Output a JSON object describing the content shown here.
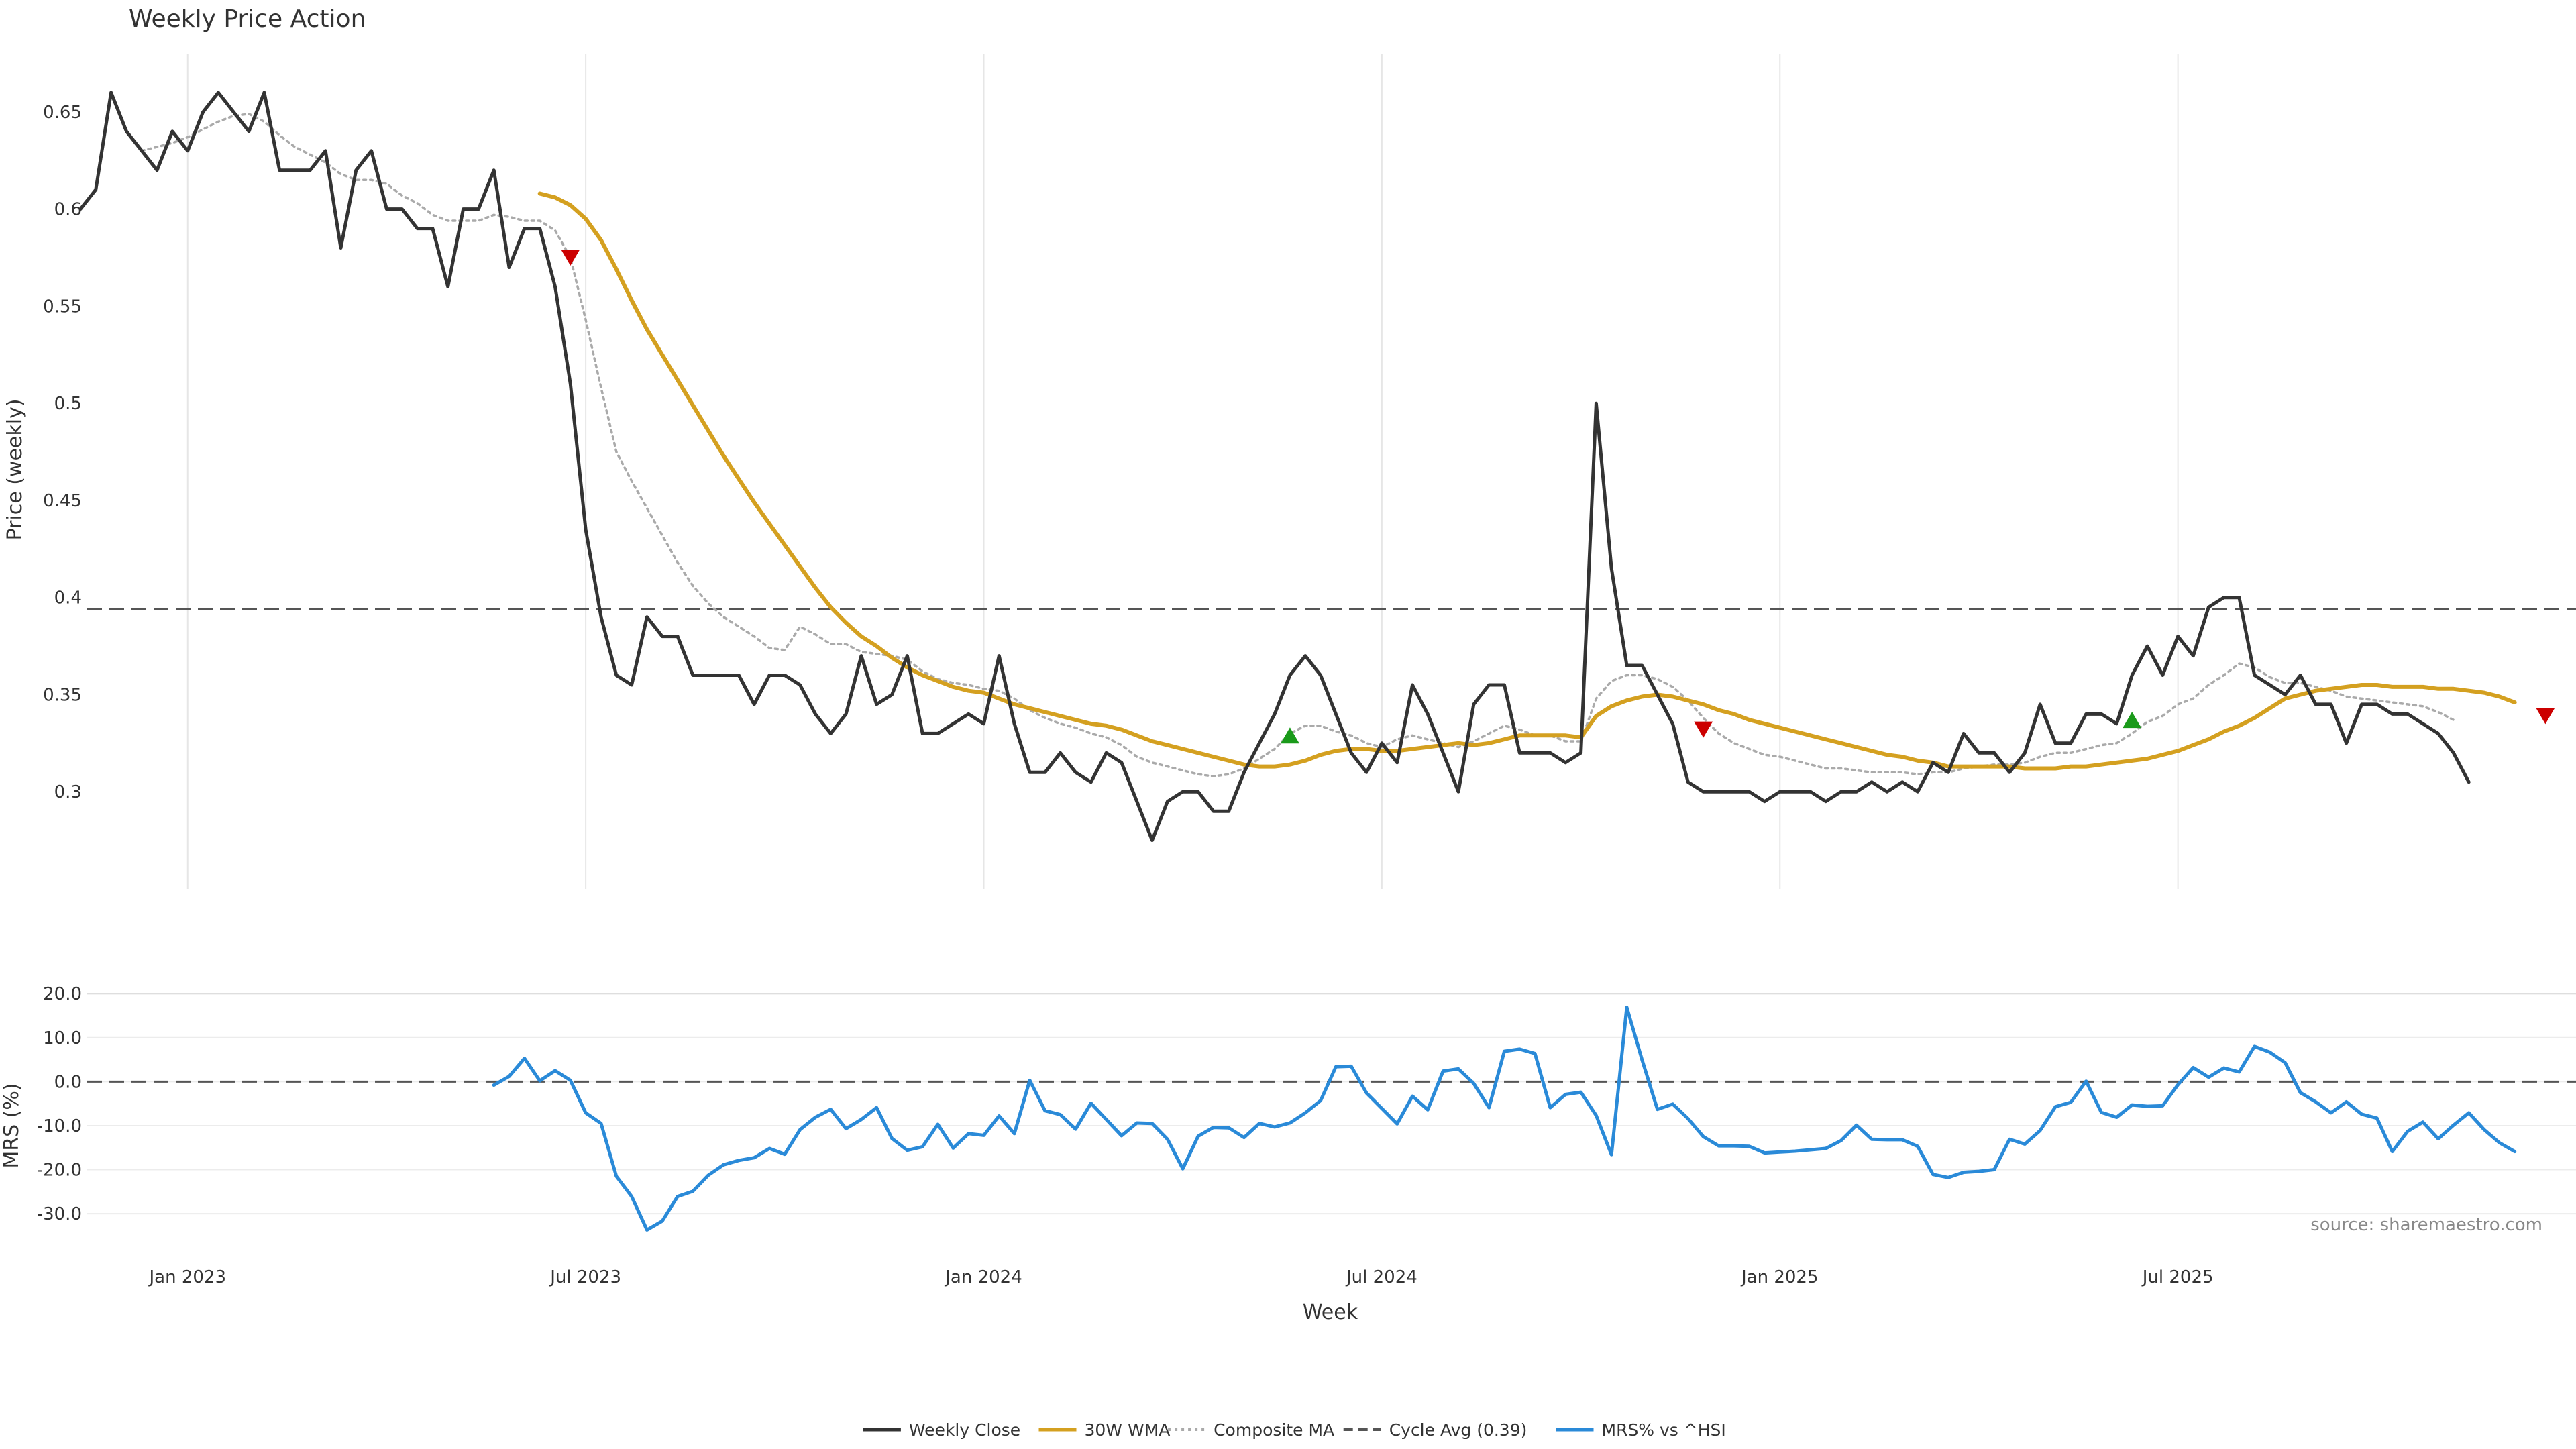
{
  "chart_data": {
    "type": "line",
    "title": "Weekly Price Action",
    "source_note": "source: sharemaestro.com",
    "xlabel": "Week",
    "x_ticks": [
      "Jan 2023",
      "Jul 2023",
      "Jan 2024",
      "Jul 2024",
      "Jan 2025",
      "Jul 2025"
    ],
    "x_range": [
      "2022-11-14",
      "2025-12-29"
    ],
    "price_panel": {
      "ylabel": "Price (weekly)",
      "ylim": [
        0.25,
        0.68
      ],
      "yticks": [
        {
          "value": 0.3,
          "label": "0.3"
        },
        {
          "value": 0.35,
          "label": "0.35"
        },
        {
          "value": 0.4,
          "label": "0.4"
        },
        {
          "value": 0.45,
          "label": "0.45"
        },
        {
          "value": 0.5,
          "label": "0.5"
        },
        {
          "value": 0.55,
          "label": "0.55"
        },
        {
          "value": 0.6,
          "label": "0.6"
        },
        {
          "value": 0.65,
          "label": "0.65"
        }
      ],
      "cycle_avg": 0.394,
      "series": [
        {
          "name": "Weekly Close",
          "color": "#333333",
          "start_date": "2022-11-14",
          "values": [
            0.6,
            0.61,
            0.66,
            0.64,
            0.63,
            0.62,
            0.64,
            0.63,
            0.65,
            0.66,
            0.65,
            0.64,
            0.66,
            0.62,
            0.62,
            0.62,
            0.63,
            0.58,
            0.62,
            0.63,
            0.6,
            0.6,
            0.59,
            0.59,
            0.56,
            0.6,
            0.6,
            0.62,
            0.57,
            0.59,
            0.59,
            0.56,
            0.51,
            0.435,
            0.39,
            0.36,
            0.355,
            0.39,
            0.38,
            0.38,
            0.36,
            0.36,
            0.36,
            0.36,
            0.345,
            0.36,
            0.36,
            0.355,
            0.34,
            0.33,
            0.34,
            0.37,
            0.345,
            0.35,
            0.37,
            0.33,
            0.33,
            0.335,
            0.34,
            0.335,
            0.37,
            0.335,
            0.31,
            0.31,
            0.32,
            0.31,
            0.305,
            0.32,
            0.315,
            0.295,
            0.275,
            0.295,
            0.3,
            0.3,
            0.29,
            0.29,
            0.31,
            0.325,
            0.34,
            0.36,
            0.37,
            0.36,
            0.34,
            0.32,
            0.31,
            0.325,
            0.315,
            0.355,
            0.34,
            0.32,
            0.3,
            0.345,
            0.355,
            0.355,
            0.32,
            0.32,
            0.32,
            0.315,
            0.32,
            0.5,
            0.415,
            0.365,
            0.365,
            0.35,
            0.335,
            0.305,
            0.3,
            0.3,
            0.3,
            0.3,
            0.295,
            0.3,
            0.3,
            0.3,
            0.295,
            0.3,
            0.3,
            0.305,
            0.3,
            0.305,
            0.3,
            0.315,
            0.31,
            0.33,
            0.32,
            0.32,
            0.31,
            0.32,
            0.345,
            0.325,
            0.325,
            0.34,
            0.34,
            0.335,
            0.36,
            0.375,
            0.36,
            0.38,
            0.37,
            0.395,
            0.4,
            0.4,
            0.36,
            0.355,
            0.35,
            0.36,
            0.345,
            0.345,
            0.325,
            0.345,
            0.345,
            0.34,
            0.34,
            0.335,
            0.33,
            0.32,
            0.305
          ]
        },
        {
          "name": "30W WMA",
          "color": "#d4a020",
          "start_date": "2023-06-12",
          "values": [
            0.608,
            0.606,
            0.602,
            0.595,
            0.584,
            0.569,
            0.553,
            0.538,
            0.525,
            0.512,
            0.499,
            0.486,
            0.473,
            0.461,
            0.449,
            0.438,
            0.427,
            0.416,
            0.405,
            0.395,
            0.387,
            0.38,
            0.375,
            0.369,
            0.364,
            0.36,
            0.357,
            0.354,
            0.352,
            0.351,
            0.348,
            0.345,
            0.343,
            0.341,
            0.339,
            0.337,
            0.335,
            0.334,
            0.332,
            0.329,
            0.326,
            0.324,
            0.322,
            0.32,
            0.318,
            0.316,
            0.314,
            0.313,
            0.313,
            0.314,
            0.316,
            0.319,
            0.321,
            0.322,
            0.322,
            0.321,
            0.321,
            0.322,
            0.323,
            0.324,
            0.325,
            0.324,
            0.325,
            0.327,
            0.329,
            0.329,
            0.329,
            0.329,
            0.328,
            0.339,
            0.344,
            0.347,
            0.349,
            0.35,
            0.349,
            0.347,
            0.345,
            0.342,
            0.34,
            0.337,
            0.335,
            0.333,
            0.331,
            0.329,
            0.327,
            0.325,
            0.323,
            0.321,
            0.319,
            0.318,
            0.316,
            0.315,
            0.313,
            0.313,
            0.313,
            0.313,
            0.313,
            0.312,
            0.312,
            0.312,
            0.313,
            0.313,
            0.314,
            0.315,
            0.316,
            0.317,
            0.319,
            0.321,
            0.324,
            0.327,
            0.331,
            0.334,
            0.338,
            0.343,
            0.348,
            0.35,
            0.352,
            0.353,
            0.354,
            0.355,
            0.355,
            0.354,
            0.354,
            0.354,
            0.353,
            0.353,
            0.352,
            0.351,
            0.349,
            0.346
          ]
        },
        {
          "name": "Composite MA",
          "color": "#aaaaaa",
          "start_date": "2022-11-14",
          "values": [
            null,
            null,
            null,
            null,
            0.63,
            0.632,
            0.634,
            0.637,
            0.641,
            0.645,
            0.648,
            0.649,
            0.645,
            0.638,
            0.632,
            0.628,
            0.624,
            0.618,
            0.615,
            0.615,
            0.613,
            0.607,
            0.603,
            0.597,
            0.594,
            0.594,
            0.594,
            0.597,
            0.596,
            0.594,
            0.594,
            0.589,
            0.575,
            0.543,
            0.508,
            0.475,
            0.46,
            0.446,
            0.432,
            0.418,
            0.406,
            0.397,
            0.39,
            0.385,
            0.38,
            0.374,
            0.373,
            0.385,
            0.381,
            0.376,
            0.376,
            0.372,
            0.371,
            0.37,
            0.368,
            0.362,
            0.358,
            0.356,
            0.355,
            0.353,
            0.352,
            0.348,
            0.342,
            0.338,
            0.335,
            0.333,
            0.33,
            0.328,
            0.324,
            0.318,
            0.315,
            0.313,
            0.311,
            0.309,
            0.308,
            0.309,
            0.312,
            0.317,
            0.322,
            0.33,
            0.334,
            0.334,
            0.331,
            0.329,
            0.325,
            0.323,
            0.327,
            0.329,
            0.327,
            0.325,
            0.323,
            0.326,
            0.33,
            0.334,
            0.332,
            0.329,
            0.329,
            0.326,
            0.326,
            0.348,
            0.357,
            0.36,
            0.36,
            0.358,
            0.354,
            0.347,
            0.338,
            0.33,
            0.325,
            0.322,
            0.319,
            0.318,
            0.316,
            0.314,
            0.312,
            0.312,
            0.311,
            0.31,
            0.31,
            0.31,
            0.309,
            0.31,
            0.31,
            0.312,
            0.313,
            0.314,
            0.314,
            0.315,
            0.318,
            0.32,
            0.32,
            0.322,
            0.324,
            0.325,
            0.33,
            0.336,
            0.339,
            0.345,
            0.348,
            0.355,
            0.36,
            0.366,
            0.364,
            0.359,
            0.356,
            0.356,
            0.354,
            0.352,
            0.349,
            0.348,
            0.347,
            0.346,
            0.345,
            0.344,
            0.341,
            0.337
          ]
        }
      ],
      "signals": [
        {
          "type": "sell",
          "date": "2023-06-26",
          "value": 0.575,
          "color": "#cc0000"
        },
        {
          "type": "buy",
          "date": "2024-05-20",
          "value": 0.329,
          "color": "#1a9a1a"
        },
        {
          "type": "sell",
          "date": "2024-11-25",
          "value": 0.332,
          "color": "#cc0000"
        },
        {
          "type": "buy",
          "date": "2025-06-09",
          "value": 0.337,
          "color": "#1a9a1a"
        },
        {
          "type": "sell",
          "date": "2025-12-15",
          "value": 0.339,
          "color": "#cc0000"
        }
      ]
    },
    "mrs_panel": {
      "ylabel": "MRS (%)",
      "ylim": [
        -37,
        24
      ],
      "yticks": [
        {
          "value": -30,
          "label": "-30.0"
        },
        {
          "value": -20,
          "label": "-20.0"
        },
        {
          "value": -10,
          "label": "-10.0"
        },
        {
          "value": 0,
          "label": "0.0"
        },
        {
          "value": 10,
          "label": "10.0"
        },
        {
          "value": 20,
          "label": "20.0"
        }
      ],
      "zero_line": 0,
      "series": [
        {
          "name": "MRS% vs ^HSI",
          "color": "#2a8ad8",
          "start_date": "2023-05-22",
          "values": [
            -0.8,
            1.2,
            5.3,
            0.2,
            2.5,
            0.3,
            -7.1,
            -9.5,
            -21.5,
            -26.1,
            -33.7,
            -31.7,
            -26.1,
            -24.9,
            -21.3,
            -18.9,
            -17.9,
            -17.3,
            -15.2,
            -16.5,
            -10.9,
            -8.1,
            -6.3,
            -10.7,
            -8.6,
            -5.9,
            -12.9,
            -15.6,
            -14.8,
            -9.7,
            -15.1,
            -11.8,
            -12.2,
            -7.8,
            -11.8,
            0.3,
            -6.6,
            -7.5,
            -10.8,
            -4.9,
            -8.6,
            -12.3,
            -9.4,
            -9.5,
            -13.1,
            -19.8,
            -12.4,
            -10.4,
            -10.5,
            -12.7,
            -9.5,
            -10.3,
            -9.4,
            -7.1,
            -4.3,
            3.4,
            3.5,
            -2.6,
            -6.1,
            -9.6,
            -3.3,
            -6.4,
            2.4,
            2.9,
            -0.4,
            -5.9,
            6.9,
            7.4,
            6.4,
            -5.9,
            -2.9,
            -2.4,
            -7.7,
            -16.6,
            16.9,
            4.9,
            -6.3,
            -5.1,
            -8.4,
            -12.5,
            -14.6,
            -14.6,
            -14.7,
            -16.2,
            -16.0,
            -15.8,
            -15.5,
            -15.2,
            -13.4,
            -9.9,
            -13.1,
            -13.2,
            -13.2,
            -14.7,
            -21.1,
            -21.8,
            -20.6,
            -20.4,
            -20.0,
            -13.1,
            -14.2,
            -11.1,
            -5.7,
            -4.7,
            0.1,
            -7.0,
            -8.1,
            -5.3,
            -5.6,
            -5.5,
            -0.7,
            3.2,
            1.0,
            3.1,
            2.2,
            8.0,
            6.7,
            4.3,
            -2.5,
            -4.6,
            -7.1,
            -4.6,
            -7.4,
            -8.3,
            -15.9,
            -11.3,
            -9.2,
            -13.0,
            -9.9,
            -7.1,
            -10.9,
            -13.9,
            -15.9
          ]
        }
      ]
    }
  },
  "legend": [
    {
      "label": "Weekly Close",
      "color": "#333333",
      "style": "solid"
    },
    {
      "label": "30W WMA",
      "color": "#d4a020",
      "style": "solid"
    },
    {
      "label": "Composite MA",
      "color": "#aaaaaa",
      "style": "dotted"
    },
    {
      "label": "Cycle Avg (0.39)",
      "color": "#555555",
      "style": "dashed"
    },
    {
      "label": "MRS% vs ^HSI",
      "color": "#2a8ad8",
      "style": "solid"
    }
  ]
}
